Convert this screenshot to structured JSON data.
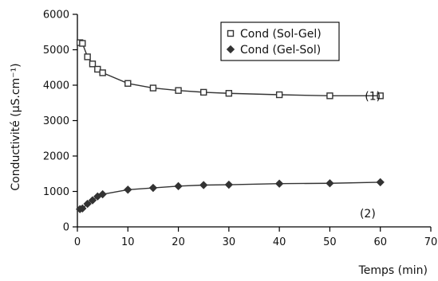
{
  "chart_data": {
    "type": "line",
    "title": "",
    "xlabel": "Temps (min)",
    "ylabel": "Conductivité (µS.cm⁻¹)",
    "xlim": [
      0,
      70
    ],
    "ylim": [
      0,
      6000
    ],
    "xticks": [
      "0",
      "10",
      "20",
      "30",
      "40",
      "50",
      "60",
      "70"
    ],
    "yticks": [
      "0",
      "1000",
      "2000",
      "3000",
      "4000",
      "5000",
      "6000"
    ],
    "grid": false,
    "legend_position": "top-right",
    "series": [
      {
        "name": "Cond (Sol-Gel)",
        "marker": "square",
        "color": "#333333",
        "x": [
          0.5,
          1,
          2,
          3,
          4,
          5,
          10,
          15,
          20,
          25,
          30,
          40,
          50,
          60
        ],
        "y": [
          5200,
          5180,
          4800,
          4600,
          4450,
          4350,
          4050,
          3920,
          3850,
          3800,
          3770,
          3730,
          3700,
          3700
        ]
      },
      {
        "name": "Cond (Gel-Sol)",
        "marker": "diamond",
        "color": "#333333",
        "x": [
          0.5,
          1,
          2,
          3,
          4,
          5,
          10,
          15,
          20,
          25,
          30,
          40,
          50,
          60
        ],
        "y": [
          500,
          520,
          650,
          750,
          860,
          920,
          1050,
          1100,
          1150,
          1180,
          1190,
          1220,
          1230,
          1260
        ]
      }
    ],
    "annotations": [
      {
        "text": "(1)",
        "x": 58.5,
        "y": 3700
      },
      {
        "text": "(2)",
        "x": 57.5,
        "y": 380
      }
    ]
  }
}
